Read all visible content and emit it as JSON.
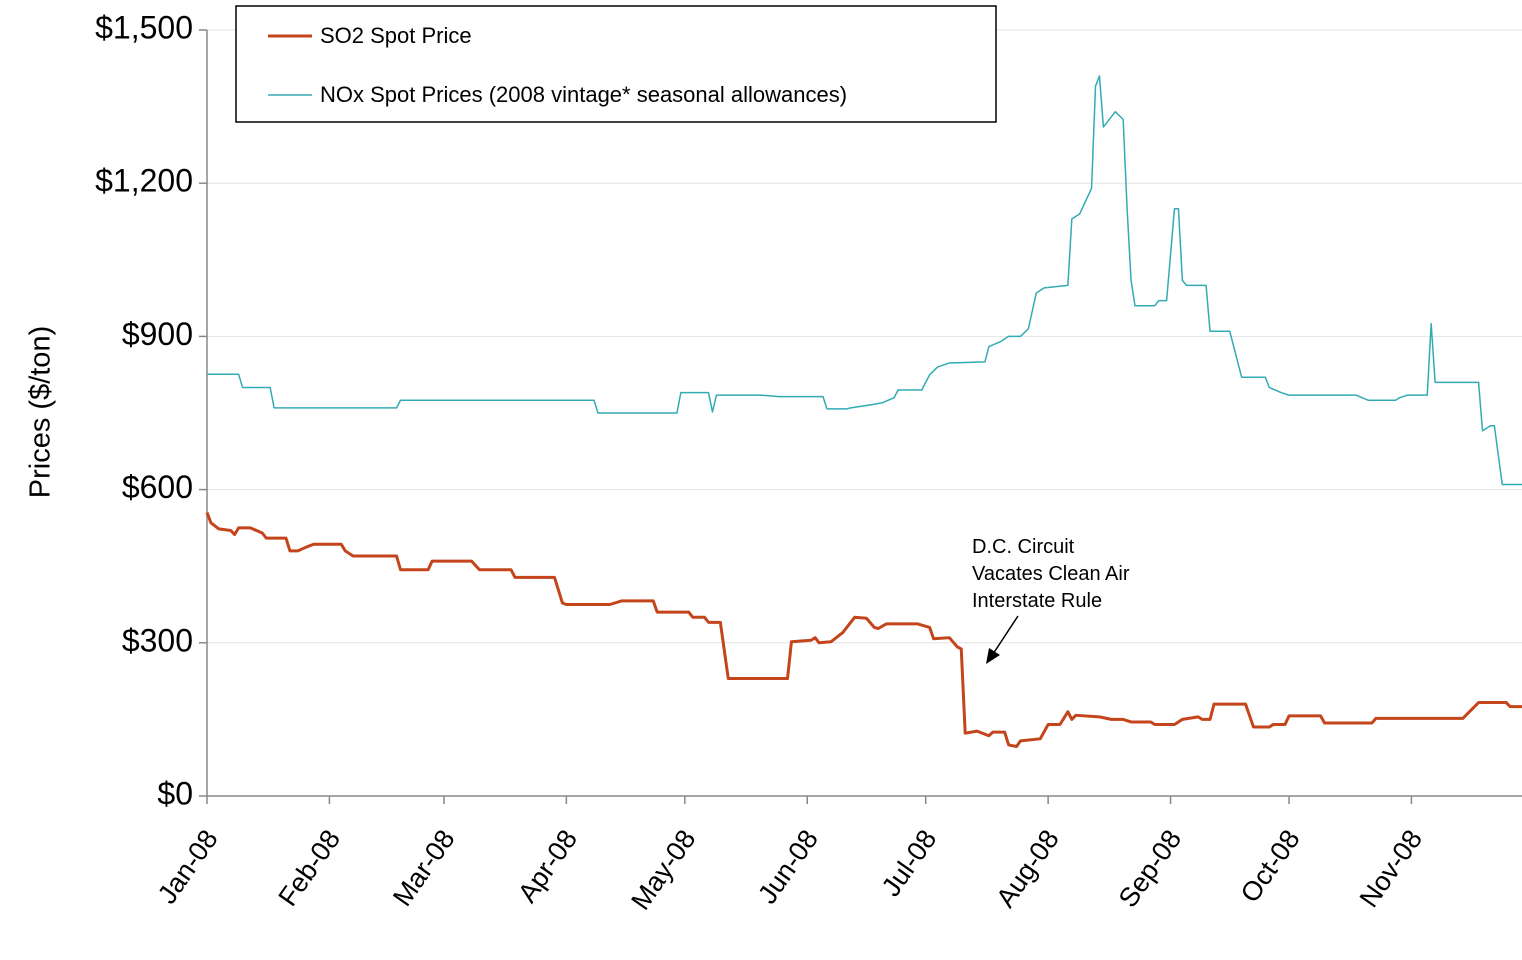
{
  "chart_data": {
    "type": "line",
    "y_label": "Prices  ($/ton)",
    "xlim": [
      0,
      333
    ],
    "xticks": [
      {
        "value": 0,
        "label": "Jan-08"
      },
      {
        "value": 31,
        "label": "Feb-08"
      },
      {
        "value": 60,
        "label": "Mar-08"
      },
      {
        "value": 91,
        "label": "Apr-08"
      },
      {
        "value": 121,
        "label": "May-08"
      },
      {
        "value": 152,
        "label": "Jun-08"
      },
      {
        "value": 182,
        "label": "Jul-08"
      },
      {
        "value": 213,
        "label": "Aug-08"
      },
      {
        "value": 244,
        "label": "Sep-08"
      },
      {
        "value": 274,
        "label": "Oct-08"
      },
      {
        "value": 305,
        "label": "Nov-08"
      }
    ],
    "ylim": [
      0,
      1500
    ],
    "yticks": [
      {
        "value": 0,
        "label": "$0"
      },
      {
        "value": 300,
        "label": "$300"
      },
      {
        "value": 600,
        "label": "$600"
      },
      {
        "value": 900,
        "label": "$900"
      },
      {
        "value": 1200,
        "label": "$1,200"
      },
      {
        "value": 1500,
        "label": "$1,500"
      }
    ],
    "grid": true,
    "legend_position": "top-left",
    "annotation": [
      "D.C. Circuit",
      "Vacates Clean Air",
      "Interstate Rule"
    ],
    "series": [
      {
        "name": "SO2 Spot Price",
        "color": "#c4441c",
        "x": [
          0,
          1,
          3,
          6,
          7,
          8,
          11,
          14,
          15,
          20,
          21,
          23,
          25,
          27,
          34,
          35,
          37,
          48,
          49,
          56,
          57,
          67,
          69,
          77,
          78,
          88,
          90,
          91,
          102,
          105,
          113,
          114,
          122,
          123,
          126,
          127,
          130,
          132,
          147,
          148,
          153,
          154,
          155,
          158,
          161,
          164,
          167,
          169,
          170,
          172,
          180,
          183,
          184,
          188,
          190,
          191,
          192,
          195,
          198,
          199,
          202,
          203,
          205,
          206,
          211,
          213,
          216,
          218,
          219,
          220,
          226,
          229,
          232,
          234,
          239,
          240,
          245,
          247,
          251,
          252,
          254,
          255,
          263,
          265,
          269,
          270,
          273,
          274,
          282,
          283,
          295,
          296,
          318,
          322,
          329,
          330,
          333
        ],
        "values": [
          555,
          535,
          523,
          520,
          512,
          525,
          525,
          515,
          505,
          505,
          480,
          480,
          487,
          493,
          493,
          480,
          470,
          470,
          443,
          443,
          460,
          460,
          443,
          443,
          428,
          428,
          378,
          375,
          375,
          382,
          382,
          360,
          360,
          350,
          350,
          340,
          340,
          230,
          230,
          302,
          305,
          310,
          300,
          302,
          320,
          350,
          348,
          330,
          328,
          337,
          337,
          330,
          308,
          310,
          292,
          288,
          123,
          127,
          118,
          125,
          125,
          100,
          97,
          108,
          112,
          140,
          140,
          165,
          150,
          158,
          155,
          150,
          150,
          145,
          145,
          140,
          140,
          150,
          155,
          150,
          150,
          180,
          180,
          135,
          135,
          140,
          140,
          157,
          157,
          143,
          143,
          152,
          152,
          183,
          183,
          175,
          175
        ]
      },
      {
        "name": "NOx Spot Prices (2008 vintage* seasonal allowances)",
        "color": "#33abb4",
        "x": [
          0,
          8,
          9,
          16,
          17,
          48,
          49,
          98,
          99,
          119,
          120,
          127,
          128,
          129,
          140,
          145,
          156,
          157,
          162,
          163,
          168,
          171,
          174,
          175,
          181,
          183,
          185,
          188,
          197,
          198,
          201,
          203,
          206,
          208,
          210,
          212,
          218,
          219,
          221,
          224,
          225,
          226,
          227,
          230,
          232,
          233,
          234,
          235,
          240,
          241,
          243,
          245,
          246,
          247,
          248,
          253,
          254,
          259,
          261,
          262,
          268,
          269,
          272,
          274,
          291,
          294,
          301,
          302,
          304,
          309,
          310,
          311,
          322,
          323,
          325,
          326,
          328,
          333
        ],
        "values": [
          826,
          826,
          800,
          800,
          760,
          760,
          775,
          775,
          750,
          750,
          790,
          790,
          752,
          785,
          785,
          782,
          782,
          758,
          758,
          760,
          766,
          770,
          780,
          795,
          795,
          825,
          840,
          848,
          850,
          880,
          890,
          900,
          900,
          915,
          985,
          995,
          1000,
          1130,
          1140,
          1190,
          1390,
          1410,
          1310,
          1340,
          1325,
          1150,
          1010,
          960,
          960,
          970,
          970,
          1150,
          1150,
          1010,
          1000,
          1000,
          910,
          910,
          850,
          820,
          820,
          800,
          790,
          785,
          785,
          775,
          775,
          780,
          785,
          785,
          925,
          810,
          810,
          715,
          725,
          725,
          610,
          610
        ]
      }
    ]
  }
}
